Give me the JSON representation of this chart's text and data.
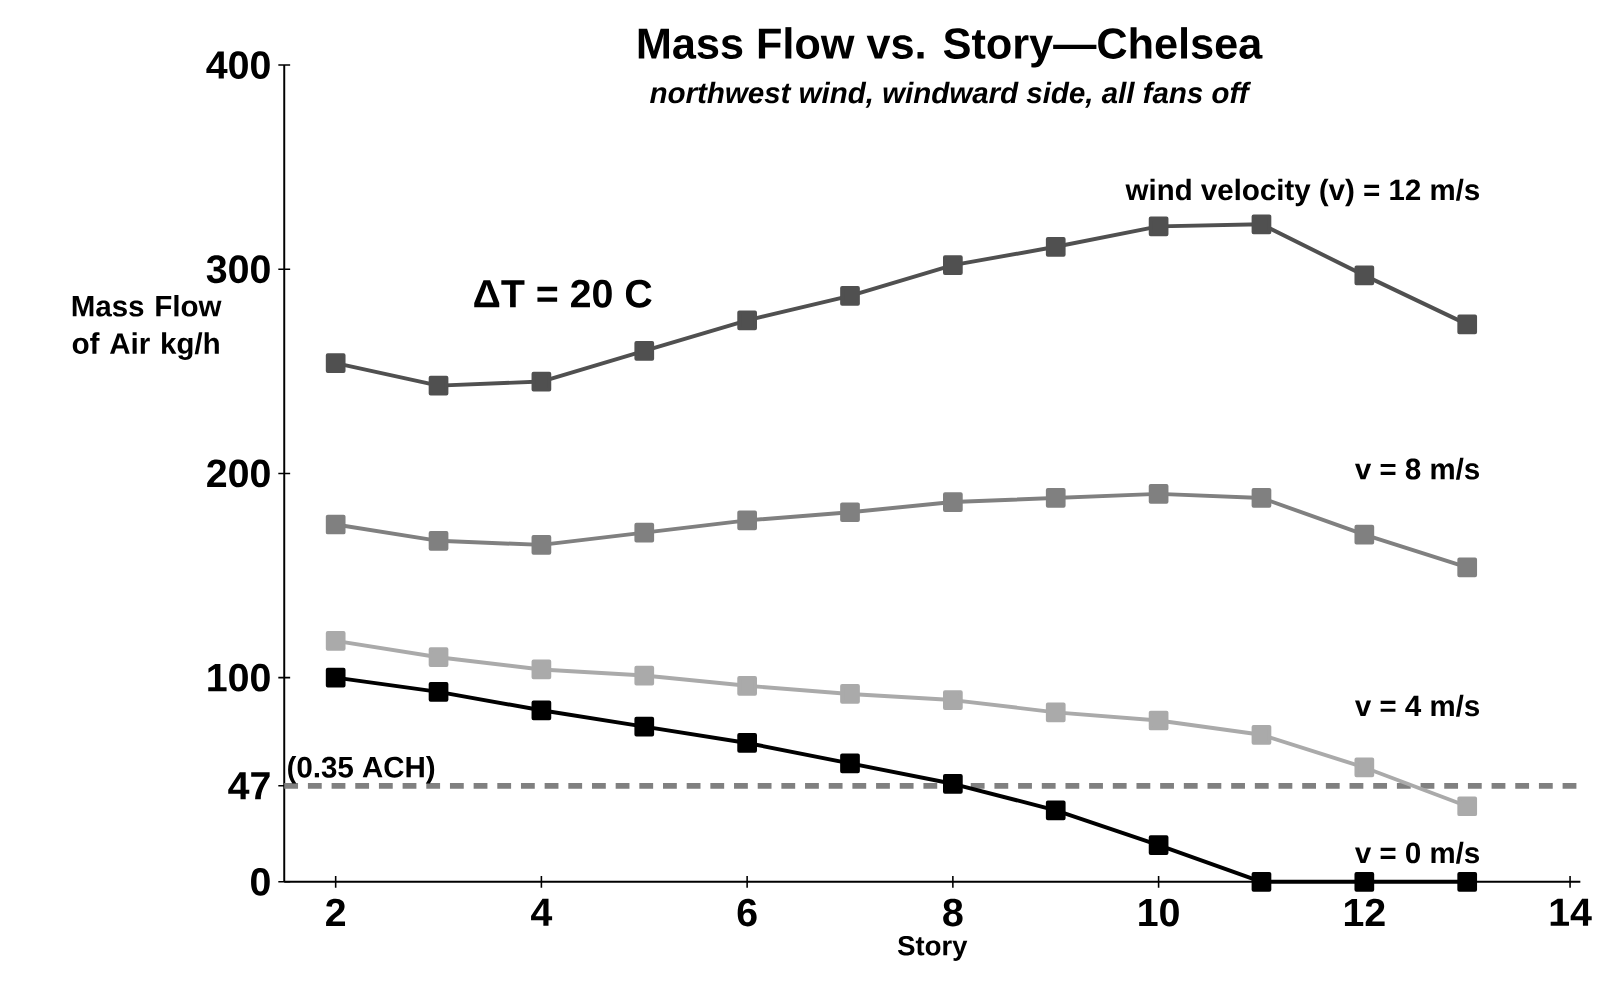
{
  "chart_data": {
    "type": "line",
    "title": "Mass Flow vs. Story—Chelsea",
    "subtitle": "northwest wind, windward side, all fans off",
    "xlabel": "Story",
    "ylabel": "Mass Flow of Air kg/h",
    "x": [
      2,
      3,
      4,
      5,
      6,
      7,
      8,
      9,
      10,
      11,
      12,
      13
    ],
    "series": [
      {
        "name": "wind velocity (v) = 12 m/s",
        "color": "#505050",
        "values": [
          254,
          243,
          245,
          260,
          275,
          287,
          302,
          311,
          321,
          322,
          297,
          273
        ]
      },
      {
        "name": "v = 8 m/s",
        "color": "#808080",
        "values": [
          175,
          167,
          165,
          171,
          177,
          181,
          186,
          188,
          190,
          188,
          170,
          154
        ]
      },
      {
        "name": "v = 4 m/s",
        "color": "#aaaaaa",
        "values": [
          118,
          110,
          104,
          101,
          96,
          92,
          89,
          83,
          79,
          72,
          56,
          37
        ]
      },
      {
        "name": "v = 0 m/s",
        "color": "#000000",
        "values": [
          100,
          93,
          84,
          76,
          68,
          58,
          48,
          35,
          18,
          0,
          0,
          0
        ]
      }
    ],
    "xlim": [
      1.5,
      14.1
    ],
    "ylim": [
      0,
      400
    ],
    "xticks": [
      2,
      4,
      6,
      8,
      10,
      12,
      14
    ],
    "yticks": [
      0,
      47,
      100,
      200,
      300,
      400
    ],
    "ref_lines": [
      {
        "axis": "y",
        "value": 47,
        "label": "(0.35 ACH)",
        "color": "#808080",
        "line_style": "dashed"
      }
    ],
    "annotations": [
      "ΔT = 20 C"
    ],
    "marker": "square",
    "line_style": "solid",
    "grid": false
  }
}
